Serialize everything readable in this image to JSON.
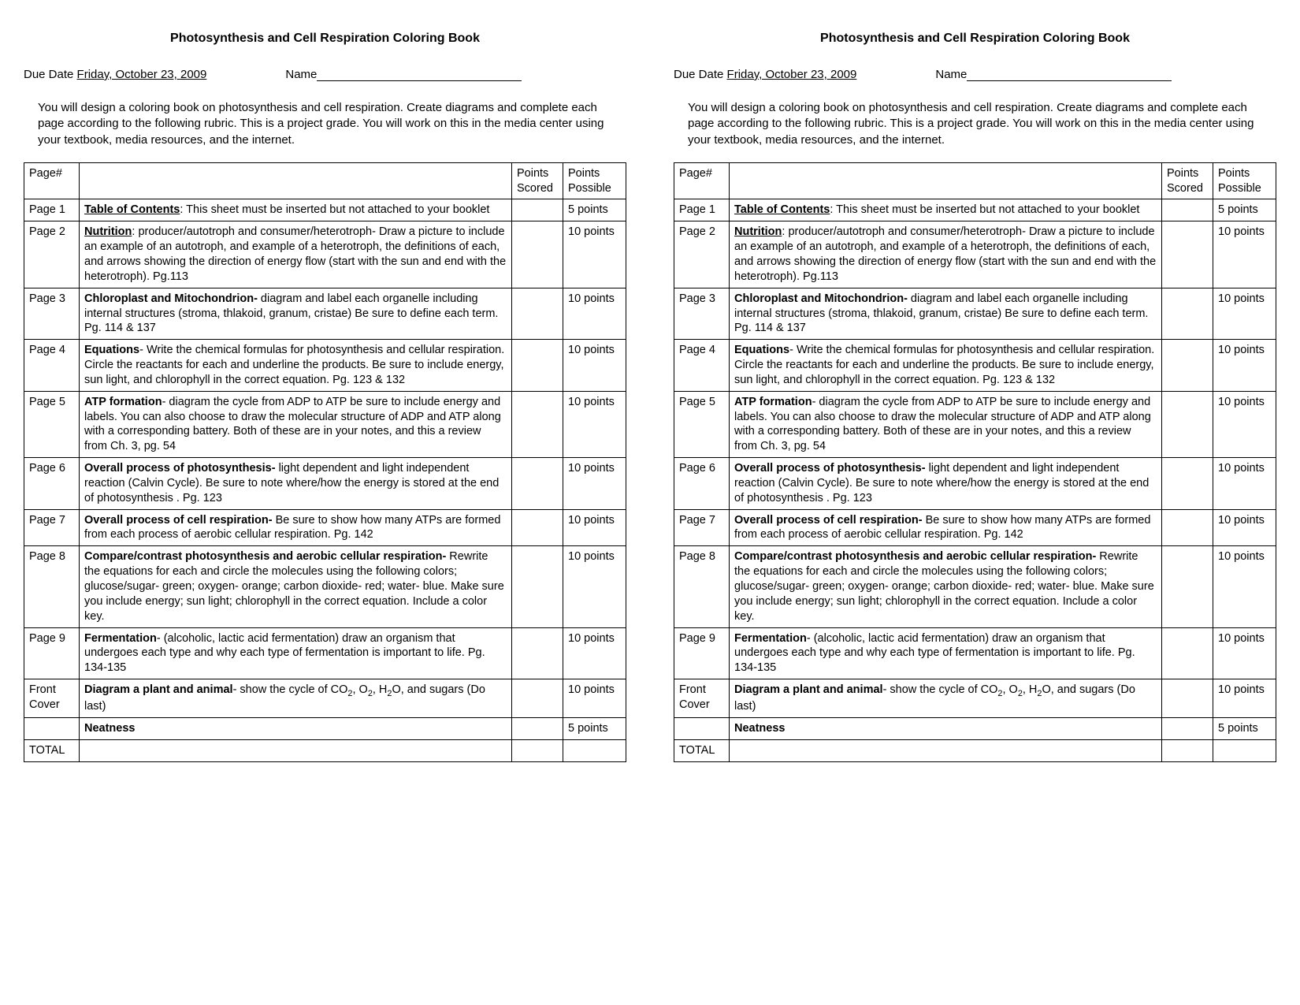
{
  "doc_title": "Photosynthesis and Cell Respiration Coloring Book",
  "due_label": "Due Date ",
  "due_date": "Friday, October 23, 2009",
  "name_label": "Name",
  "intro": "You will design a coloring book on photosynthesis and cell respiration. Create diagrams and complete each page according to the following rubric.  This is a project grade.  You will work on this in the media center using your textbook, media resources, and the internet.",
  "headers": {
    "page": "Page#",
    "desc": "",
    "scored": "Points Scored",
    "possible": "Points Possible"
  },
  "rows": [
    {
      "page": "Page 1",
      "lead_bold": "Table of Contents",
      "lead_underline": true,
      "sep": ": ",
      "rest": "This sheet must be inserted but not attached to your booklet",
      "points": "5 points"
    },
    {
      "page": "Page 2",
      "lead_bold": "Nutrition",
      "lead_underline": true,
      "sep": ":  ",
      "rest": "producer/autotroph and consumer/heterotroph- Draw a picture to include an example of an autotroph, and example of a heterotroph, the definitions of each, and arrows showing the direction of energy flow (start with the sun and end with the heterotroph). Pg.113",
      "points": "10 points"
    },
    {
      "page": "Page 3",
      "lead_bold": "Chloroplast and Mitochondrion-",
      "lead_underline": false,
      "sep": " ",
      "rest": "diagram and label each organelle including internal structures (stroma, thlakoid, granum, cristae) Be sure to define each term. Pg. 114 & 137",
      "points": "10 points"
    },
    {
      "page": "Page 4",
      "lead_bold": "Equations",
      "lead_underline": false,
      "sep": "- ",
      "rest": "Write the chemical formulas for photosynthesis and cellular respiration. Circle the reactants for each and underline the products.  Be sure to include energy, sun light, and chlorophyll in the correct equation.  Pg. 123 & 132",
      "points": "10 points"
    },
    {
      "page": "Page 5",
      "lead_bold": "ATP formation",
      "lead_underline": false,
      "sep": "-  ",
      "rest": "diagram the cycle from ADP to ATP be sure to include energy and labels.  You can also choose to draw the molecular structure of ADP and ATP along with a corresponding battery.  Both of these are in your notes, and this a review from Ch. 3, pg. 54",
      "points": "10 points"
    },
    {
      "page": "Page 6",
      "lead_bold": "Overall process of photosynthesis-",
      "lead_underline": false,
      "sep": " ",
      "rest": "light dependent and light independent reaction (Calvin Cycle).  Be sure to note where/how the energy is stored at the end of photosynthesis . Pg. 123",
      "points": "10 points"
    },
    {
      "page": "Page 7",
      "lead_bold": "Overall process of cell respiration-",
      "lead_underline": false,
      "sep": "  ",
      "rest": "Be sure to show how many ATPs are formed from each process of aerobic cellular respiration. Pg. 142",
      "points": "10 points"
    },
    {
      "page": "Page 8",
      "lead_bold": "Compare/contrast photosynthesis and aerobic cellular respiration-",
      "lead_underline": false,
      "sep": " ",
      "rest": "Rewrite the equations for each and circle the molecules using the following colors; glucose/sugar- green; oxygen- orange; carbon dioxide- red; water- blue.  Make sure you include energy; sun light; chlorophyll in the correct equation.  Include a color key.",
      "points": "10 points"
    },
    {
      "page": "Page 9",
      "lead_bold": "Fermentation",
      "lead_underline": false,
      "sep": "- ",
      "rest": "(alcoholic, lactic acid fermentation) draw an organism that undergoes each type and why each type of fermentation is important to life. Pg. 134-135",
      "points": "10 points"
    },
    {
      "page": "Front Cover",
      "lead_bold": "Diagram a plant and animal",
      "lead_underline": false,
      "sep": "- ",
      "rest_html": "show the cycle of CO<span class='sub'>2</span>, O<span class='sub'>2</span>, H<span class='sub'>2</span>O, and sugars   (Do last)",
      "points": "10 points"
    },
    {
      "page": "",
      "lead_bold": "Neatness",
      "lead_underline": false,
      "sep": "",
      "rest": "",
      "points": "5 points"
    },
    {
      "page": "TOTAL",
      "lead_bold": "",
      "rest": "",
      "points": ""
    }
  ]
}
